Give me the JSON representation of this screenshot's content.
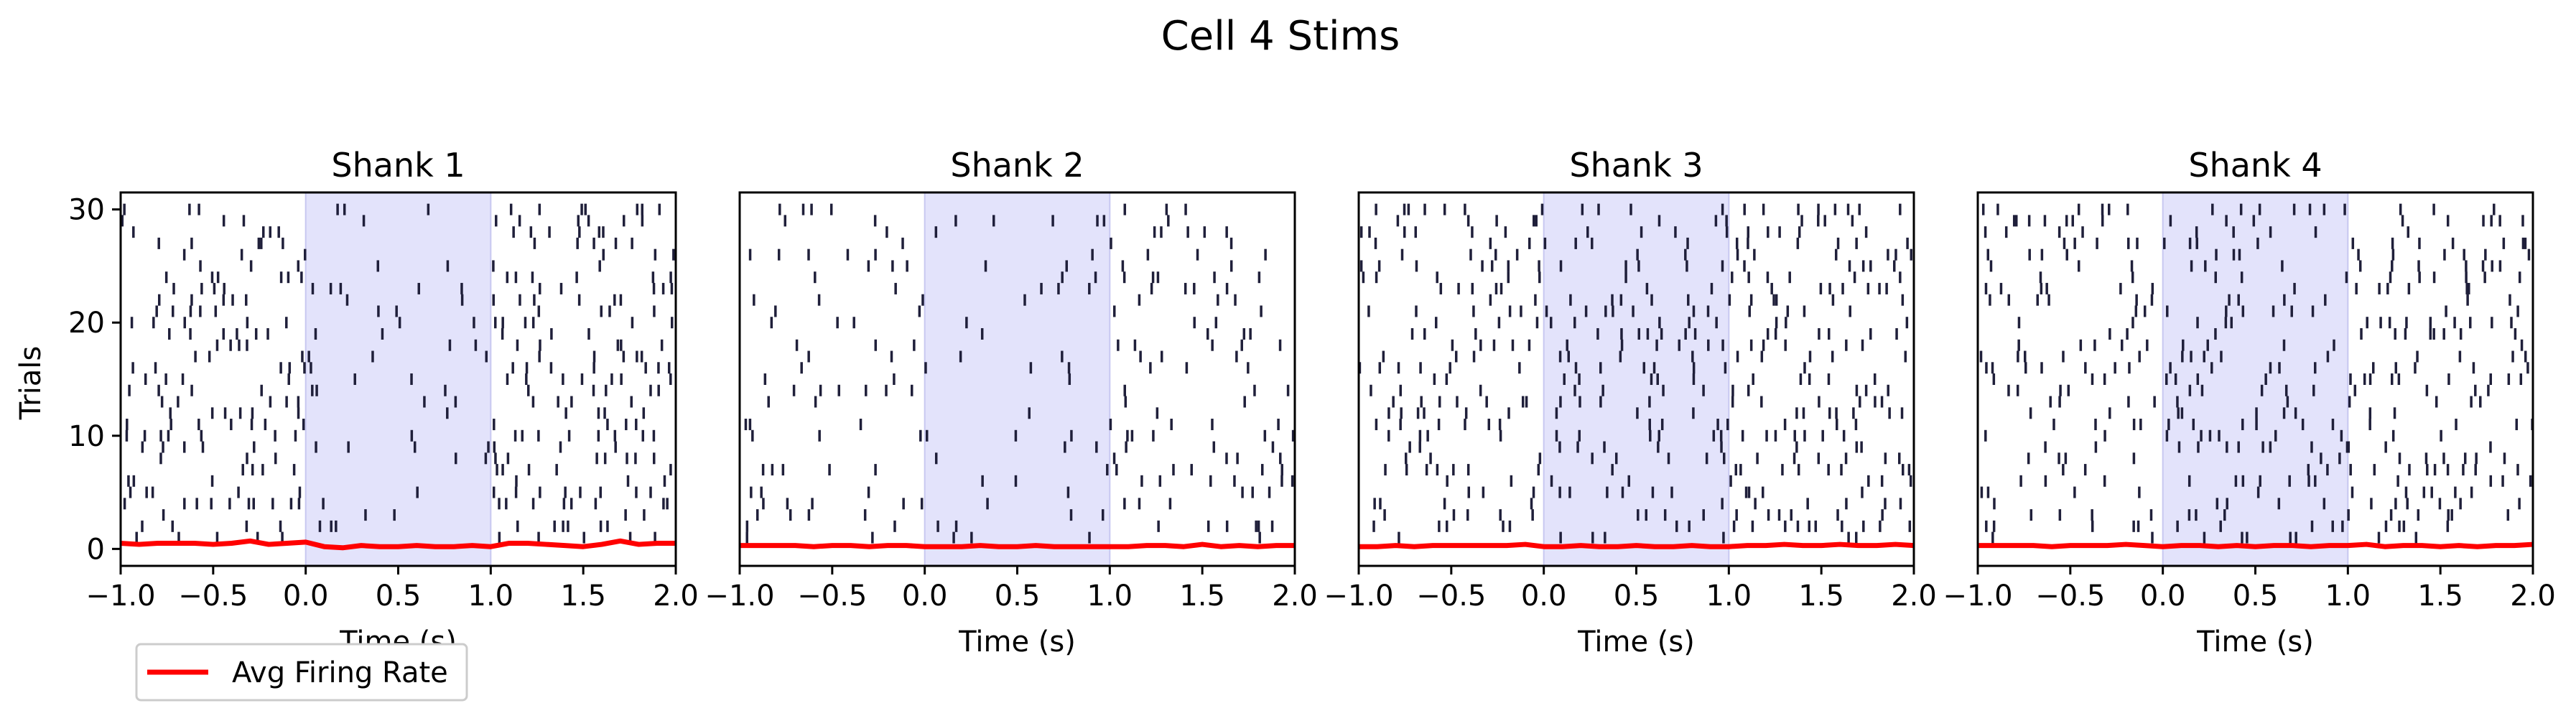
{
  "figure": {
    "title": "Cell 4 Stims",
    "legend": {
      "label": "Avg Firing Rate",
      "placement": "lower-left, below first panel"
    }
  },
  "colors": {
    "spike": "#1f1f3a",
    "stim_fill": "#e3e3fb",
    "stim_edge": "#c8c8f0",
    "avg_line": "#ff0000",
    "axis": "#000000"
  },
  "chart_data": [
    {
      "type": "scatter",
      "title": "Shank 1",
      "xlabel": "Time (s)",
      "ylabel": "Trials",
      "xlim": [
        -1.0,
        2.0
      ],
      "ylim": [
        -1.5,
        31.5
      ],
      "xticks": [
        -1.0,
        -0.5,
        0.0,
        0.5,
        1.0,
        1.5,
        2.0
      ],
      "xtick_labels": [
        "−1.0",
        "−0.5",
        "0.0",
        "0.5",
        "1.0",
        "1.5",
        "2.0"
      ],
      "yticks": [
        0,
        10,
        20,
        30
      ],
      "ytick_labels": [
        "0",
        "10",
        "20",
        "30"
      ],
      "stim_window": [
        0.0,
        1.0
      ],
      "grid": false,
      "avg_firing_rate": {
        "name": "Avg Firing Rate",
        "x": [
          -1.0,
          -0.9,
          -0.8,
          -0.7,
          -0.6,
          -0.5,
          -0.4,
          -0.3,
          -0.2,
          -0.1,
          0.0,
          0.1,
          0.2,
          0.3,
          0.4,
          0.5,
          0.6,
          0.7,
          0.8,
          0.9,
          1.0,
          1.1,
          1.2,
          1.3,
          1.4,
          1.5,
          1.6,
          1.7,
          1.8,
          1.9,
          2.0
        ],
        "y": [
          0.5,
          0.4,
          0.5,
          0.5,
          0.5,
          0.4,
          0.5,
          0.7,
          0.4,
          0.5,
          0.6,
          0.2,
          0.1,
          0.3,
          0.2,
          0.2,
          0.3,
          0.2,
          0.2,
          0.3,
          0.2,
          0.5,
          0.5,
          0.4,
          0.3,
          0.2,
          0.4,
          0.7,
          0.4,
          0.5,
          0.5
        ]
      },
      "spike_density": {
        "pre": 0.4,
        "stim": 0.1,
        "post": 0.45
      }
    },
    {
      "type": "scatter",
      "title": "Shank 2",
      "xlabel": "Time (s)",
      "xlim": [
        -1.0,
        2.0
      ],
      "ylim": [
        -1.5,
        31.5
      ],
      "xticks": [
        -1.0,
        -0.5,
        0.0,
        0.5,
        1.0,
        1.5,
        2.0
      ],
      "xtick_labels": [
        "−1.0",
        "−0.5",
        "0.0",
        "0.5",
        "1.0",
        "1.5",
        "2.0"
      ],
      "stim_window": [
        0.0,
        1.0
      ],
      "grid": false,
      "avg_firing_rate": {
        "name": "Avg Firing Rate",
        "x": [
          -1.0,
          -0.9,
          -0.8,
          -0.7,
          -0.6,
          -0.5,
          -0.4,
          -0.3,
          -0.2,
          -0.1,
          0.0,
          0.1,
          0.2,
          0.3,
          0.4,
          0.5,
          0.6,
          0.7,
          0.8,
          0.9,
          1.0,
          1.1,
          1.2,
          1.3,
          1.4,
          1.5,
          1.6,
          1.7,
          1.8,
          1.9,
          2.0
        ],
        "y": [
          0.3,
          0.3,
          0.3,
          0.3,
          0.2,
          0.3,
          0.3,
          0.2,
          0.3,
          0.3,
          0.2,
          0.2,
          0.2,
          0.3,
          0.2,
          0.2,
          0.3,
          0.2,
          0.2,
          0.2,
          0.2,
          0.2,
          0.3,
          0.3,
          0.2,
          0.4,
          0.2,
          0.3,
          0.2,
          0.3,
          0.3
        ]
      },
      "spike_density": {
        "pre": 0.22,
        "stim": 0.2,
        "post": 0.28
      }
    },
    {
      "type": "scatter",
      "title": "Shank 3",
      "xlabel": "Time (s)",
      "xlim": [
        -1.0,
        2.0
      ],
      "ylim": [
        -1.5,
        31.5
      ],
      "xticks": [
        -1.0,
        -0.5,
        0.0,
        0.5,
        1.0,
        1.5,
        2.0
      ],
      "xtick_labels": [
        "−1.0",
        "−0.5",
        "0.0",
        "0.5",
        "1.0",
        "1.5",
        "2.0"
      ],
      "stim_window": [
        0.0,
        1.0
      ],
      "grid": false,
      "avg_firing_rate": {
        "name": "Avg Firing Rate",
        "x": [
          -1.0,
          -0.9,
          -0.8,
          -0.7,
          -0.6,
          -0.5,
          -0.4,
          -0.3,
          -0.2,
          -0.1,
          0.0,
          0.1,
          0.2,
          0.3,
          0.4,
          0.5,
          0.6,
          0.7,
          0.8,
          0.9,
          1.0,
          1.1,
          1.2,
          1.3,
          1.4,
          1.5,
          1.6,
          1.7,
          1.8,
          1.9,
          2.0
        ],
        "y": [
          0.2,
          0.2,
          0.3,
          0.2,
          0.3,
          0.3,
          0.3,
          0.3,
          0.3,
          0.4,
          0.2,
          0.2,
          0.3,
          0.2,
          0.2,
          0.3,
          0.2,
          0.2,
          0.3,
          0.2,
          0.2,
          0.3,
          0.3,
          0.4,
          0.3,
          0.3,
          0.4,
          0.3,
          0.3,
          0.4,
          0.3
        ]
      },
      "spike_density": {
        "pre": 0.4,
        "stim": 0.38,
        "post": 0.45
      }
    },
    {
      "type": "scatter",
      "title": "Shank 4",
      "xlabel": "Time (s)",
      "xlim": [
        -1.0,
        2.0
      ],
      "ylim": [
        -1.5,
        31.5
      ],
      "xticks": [
        -1.0,
        -0.5,
        0.0,
        0.5,
        1.0,
        1.5,
        2.0
      ],
      "xtick_labels": [
        "−1.0",
        "−0.5",
        "0.0",
        "0.5",
        "1.0",
        "1.5",
        "2.0"
      ],
      "stim_window": [
        0.0,
        1.0
      ],
      "grid": false,
      "avg_firing_rate": {
        "name": "Avg Firing Rate",
        "x": [
          -1.0,
          -0.9,
          -0.8,
          -0.7,
          -0.6,
          -0.5,
          -0.4,
          -0.3,
          -0.2,
          -0.1,
          0.0,
          0.1,
          0.2,
          0.3,
          0.4,
          0.5,
          0.6,
          0.7,
          0.8,
          0.9,
          1.0,
          1.1,
          1.2,
          1.3,
          1.4,
          1.5,
          1.6,
          1.7,
          1.8,
          1.9,
          2.0
        ],
        "y": [
          0.3,
          0.3,
          0.3,
          0.3,
          0.2,
          0.3,
          0.3,
          0.3,
          0.4,
          0.3,
          0.2,
          0.3,
          0.3,
          0.2,
          0.3,
          0.2,
          0.3,
          0.3,
          0.2,
          0.3,
          0.3,
          0.4,
          0.2,
          0.3,
          0.3,
          0.2,
          0.3,
          0.2,
          0.3,
          0.3,
          0.4
        ]
      },
      "spike_density": {
        "pre": 0.32,
        "stim": 0.34,
        "post": 0.42
      }
    }
  ]
}
